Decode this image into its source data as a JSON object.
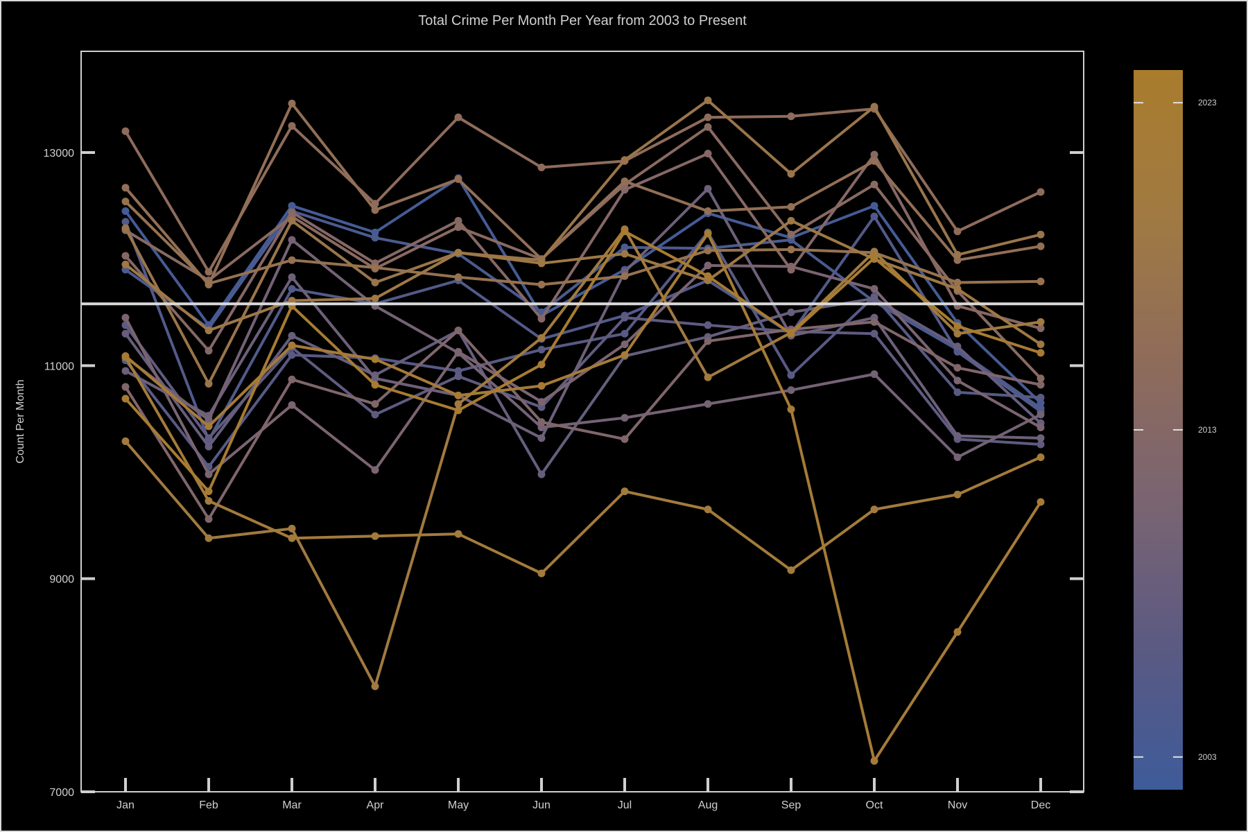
{
  "chart_data": {
    "type": "line",
    "title": "Total Crime Per Month Per Year from 2003 to Present",
    "xlabel": "",
    "ylabel": "Count Per Month",
    "categories": [
      "Jan",
      "Feb",
      "Mar",
      "Apr",
      "May",
      "Jun",
      "Jul",
      "Aug",
      "Sep",
      "Oct",
      "Nov",
      "Dec"
    ],
    "ylim": [
      7000,
      13950
    ],
    "yticks": [
      7000,
      9000,
      11000,
      13000
    ],
    "reference_line": 11580,
    "grid": false,
    "colorbar": {
      "ticks": [
        {
          "label": "2023",
          "year": 2023
        },
        {
          "label": "2013",
          "year": 2013
        },
        {
          "label": "2003",
          "year": 2003
        }
      ],
      "colors": [
        "#3e5b9a",
        "#5b5a82",
        "#7a6472",
        "#8f6c5a",
        "#a07a42",
        "#a97c2d"
      ],
      "year_range": [
        2002,
        2024
      ]
    },
    "series": [
      {
        "year": 2003,
        "values": [
          12450,
          11380,
          12500,
          12250,
          12760,
          11470,
          11900,
          12430,
          12200,
          12500,
          11400,
          10650
        ]
      },
      {
        "year": 2004,
        "values": [
          11900,
          11350,
          12450,
          12200,
          12050,
          11500,
          12110,
          12100,
          12180,
          11600,
          11150,
          10600
        ]
      },
      {
        "year": 2005,
        "values": [
          12350,
          10300,
          11720,
          11580,
          11800,
          11250,
          11470,
          11800,
          11300,
          12400,
          11130,
          10570
        ]
      },
      {
        "year": 2006,
        "values": [
          11050,
          10050,
          11100,
          11070,
          10950,
          11150,
          11300,
          12250,
          10910,
          11650,
          10750,
          10700
        ]
      },
      {
        "year": 2007,
        "values": [
          11380,
          10320,
          11170,
          10540,
          10900,
          10610,
          11450,
          11380,
          11320,
          11300,
          10310,
          10260
        ]
      },
      {
        "year": 2008,
        "values": [
          11300,
          10240,
          11280,
          10910,
          11330,
          9980,
          11090,
          11270,
          11500,
          11630,
          11180,
          10460
        ]
      },
      {
        "year": 2009,
        "values": [
          10950,
          10530,
          11830,
          10880,
          10720,
          10320,
          11880,
          12660,
          11280,
          11450,
          10340,
          10320
        ]
      },
      {
        "year": 2010,
        "values": [
          11080,
          10490,
          12180,
          11560,
          11120,
          10420,
          10510,
          10640,
          10770,
          10920,
          10140,
          10540
        ]
      },
      {
        "year": 2011,
        "values": [
          11450,
          9980,
          10630,
          10020,
          11130,
          10660,
          11200,
          11940,
          11930,
          11720,
          10860,
          10420
        ]
      },
      {
        "year": 2012,
        "values": [
          10800,
          9560,
          10870,
          10640,
          11330,
          10470,
          10310,
          11230,
          11340,
          11410,
          10980,
          10820
        ]
      },
      {
        "year": 2013,
        "values": [
          12030,
          11140,
          12440,
          11960,
          12360,
          11440,
          12650,
          12990,
          11900,
          12980,
          11560,
          11350
        ]
      },
      {
        "year": 2014,
        "values": [
          12270,
          11800,
          12400,
          11910,
          12300,
          12000,
          12700,
          13240,
          12230,
          12700,
          11700,
          10880
        ]
      },
      {
        "year": 2015,
        "values": [
          13200,
          11880,
          13250,
          12520,
          13330,
          12860,
          12920,
          13330,
          13340,
          13410,
          12260,
          12630
        ]
      },
      {
        "year": 2016,
        "values": [
          12670,
          11760,
          13460,
          12460,
          12750,
          12000,
          12730,
          12450,
          12490,
          12920,
          11990,
          12120
        ]
      },
      {
        "year": 2017,
        "values": [
          12540,
          11770,
          11990,
          11920,
          11830,
          11760,
          11840,
          12080,
          12090,
          12060,
          11780,
          11790
        ]
      },
      {
        "year": 2018,
        "values": [
          12290,
          10830,
          12360,
          11780,
          12060,
          11990,
          12930,
          13490,
          12800,
          13430,
          12040,
          12230
        ]
      },
      {
        "year": 2019,
        "values": [
          11950,
          11330,
          11610,
          11630,
          12060,
          11960,
          12050,
          11800,
          12360,
          12000,
          11720,
          11200
        ]
      },
      {
        "year": 2020,
        "values": [
          10290,
          9380,
          9470,
          7990,
          10640,
          11260,
          12280,
          10890,
          11310,
          12070,
          11300,
          11410
        ]
      },
      {
        "year": 2021,
        "values": [
          11080,
          9730,
          9380,
          9400,
          9420,
          9050,
          9820,
          9650,
          9080,
          9650,
          9790,
          10140
        ]
      },
      {
        "year": 2022,
        "values": [
          11090,
          10430,
          11190,
          11060,
          10720,
          10810,
          11100,
          12240,
          10590,
          7290,
          8500,
          9720
        ]
      },
      {
        "year": 2023,
        "values": [
          10690,
          9820,
          11560,
          10820,
          10580,
          11010,
          12260,
          11840,
          11300,
          12010,
          11370,
          11120
        ]
      }
    ]
  }
}
